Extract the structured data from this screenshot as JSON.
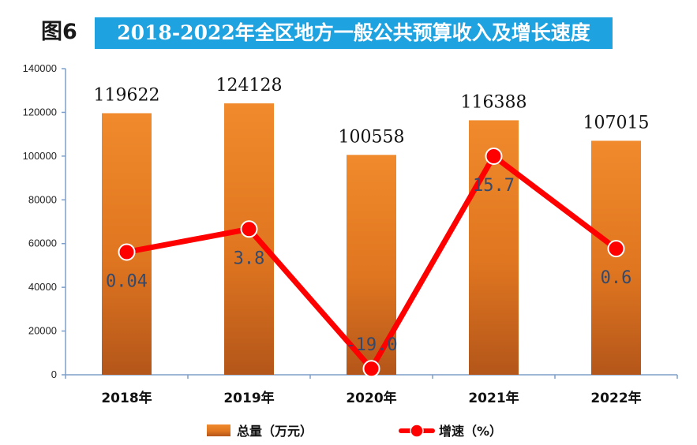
{
  "figure_label": "图6",
  "chart_data": {
    "type": "bar",
    "title": "2018-2022年全区地方一般公共预算收入及增长速度",
    "categories": [
      "2018年",
      "2019年",
      "2020年",
      "2021年",
      "2022年"
    ],
    "series": [
      {
        "name": "总量（万元）",
        "type": "bar",
        "values": [
          119622,
          124128,
          100558,
          116388,
          107015
        ],
        "color": "#e8791e"
      },
      {
        "name": "增速（%）",
        "type": "line",
        "values": [
          0.04,
          3.8,
          -19.0,
          15.7,
          0.6
        ],
        "labels": [
          "0.04",
          "3.8",
          "-19.0",
          "15.7",
          "0.6"
        ],
        "color": "#ff0000"
      }
    ],
    "ylim": [
      0,
      140000
    ],
    "yticks": [
      0,
      20000,
      40000,
      60000,
      80000,
      100000,
      120000,
      140000
    ],
    "secondary_ylim": [
      -20,
      30
    ],
    "xlabel": "",
    "ylabel": "",
    "legend_position": "bottom",
    "grid": false
  }
}
